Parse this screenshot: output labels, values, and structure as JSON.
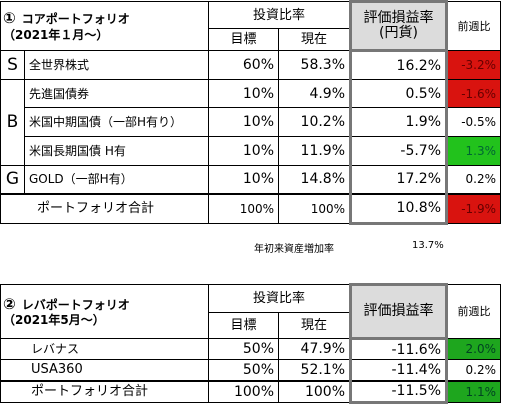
{
  "core": {
    "index": "①",
    "title": "コアポートフォリオ",
    "subtitle": "（2021年１月～）",
    "header": {
      "allocation": "投資比率",
      "target": "目標",
      "current": "現在",
      "pl_line1": "評価損益率",
      "pl_line2": "(円貨)",
      "weekly": "前週比"
    },
    "groups": [
      "S",
      "B",
      "G"
    ],
    "rows": [
      {
        "name": "全世界株式",
        "target": "60%",
        "current": "58.3%",
        "pl": "16.2%",
        "weekly": "-3.2%",
        "color": "#d9130f"
      },
      {
        "name": "先進国債券",
        "target": "10%",
        "current": "4.9%",
        "pl": "0.5%",
        "weekly": "-1.6%",
        "color": "#d9130f"
      },
      {
        "name": "米国中期国債（一部H有り）",
        "target": "10%",
        "current": "10.2%",
        "pl": "1.9%",
        "weekly": "-0.5%",
        "color": ""
      },
      {
        "name": "米国長期国債 H有",
        "target": "10%",
        "current": "11.9%",
        "pl": "-5.7%",
        "weekly": "1.3%",
        "color": "#22c21c"
      },
      {
        "name": "GOLD（一部H有）",
        "target": "10%",
        "current": "14.8%",
        "pl": "17.2%",
        "weekly": "0.2%",
        "color": ""
      }
    ],
    "total": {
      "label": "ポートフォリオ合計",
      "target": "100%",
      "current": "100%",
      "pl": "10.8%",
      "weekly": "-1.9%"
    },
    "ytd_label": "年初来資産増加率",
    "ytd_value": "13.7%"
  },
  "leverage": {
    "index": "②",
    "title": "レバポートフォリオ",
    "subtitle": "（2021年5月～）",
    "header": {
      "allocation": "投資比率",
      "target": "目標",
      "current": "現在",
      "pl": "評価損益率",
      "weekly": "前週比"
    },
    "rows": [
      {
        "name": "レバナス",
        "target": "50%",
        "current": "47.9%",
        "pl": "-11.6%",
        "weekly": "2.0%",
        "color": "#1ea61e"
      },
      {
        "name": "USA360",
        "target": "50%",
        "current": "52.1%",
        "pl": "-11.4%",
        "weekly": "0.2%",
        "color": ""
      }
    ],
    "total": {
      "label": "ポートフォリオ合計",
      "target": "100%",
      "current": "100%",
      "pl": "-11.5%",
      "weekly": "1.1%"
    }
  }
}
